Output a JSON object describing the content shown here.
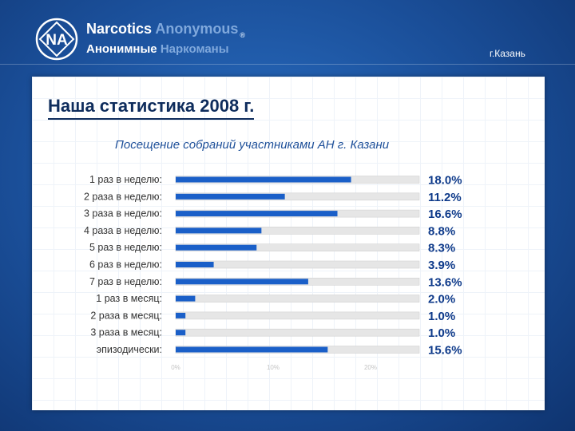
{
  "header": {
    "brand_line1_main": "Narcotics",
    "brand_line1_dim": "Anonymous",
    "brand_line2_main": "Анонимные",
    "brand_line2_dim": "Наркоманы",
    "registered_mark": "®",
    "logo_text": "NA",
    "city": "г.Казань"
  },
  "slide": {
    "title": "Наша статистика 2008 г."
  },
  "colors": {
    "bar": "#1a5fc8",
    "track": "#e6e6e6",
    "value_text": "#0e3a8a",
    "label_text": "#333333",
    "chart_title": "#1d4f99"
  },
  "chart_data": {
    "type": "bar",
    "orientation": "horizontal",
    "title": "Посещение собраний участниками АН г. Казани",
    "categories": [
      "1 раз в неделю:",
      "2 раза в неделю:",
      "3 раза в неделю:",
      "4 раза в неделю:",
      "5 раз в неделю:",
      "6 раз в неделю:",
      "7 раз в неделю:",
      "1 раз в месяц:",
      "2 раза в месяц:",
      "3 раза в месяц:",
      "эпизодически:"
    ],
    "values": [
      18.0,
      11.2,
      16.6,
      8.8,
      8.3,
      3.9,
      13.6,
      2.0,
      1.0,
      1.0,
      15.6
    ],
    "value_labels": [
      "18.0%",
      "11.2%",
      "16.6%",
      "8.8%",
      "8.3%",
      "3.9%",
      "13.6%",
      "2.0%",
      "1.0%",
      "1.0%",
      "15.6%"
    ],
    "xlim": [
      0,
      25
    ],
    "x_ticks": [
      0,
      10,
      20
    ],
    "x_tick_labels": [
      "0%",
      "10%",
      "20%"
    ],
    "grid": false,
    "legend": "none"
  }
}
